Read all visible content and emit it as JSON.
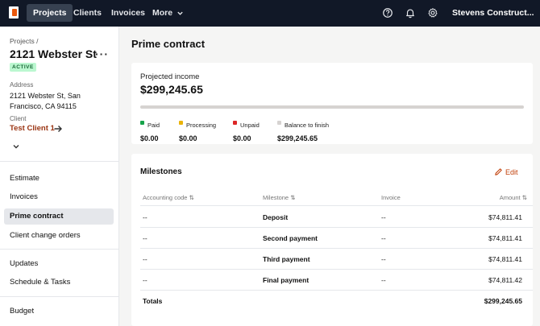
{
  "nav": {
    "tabs": [
      {
        "label": "Projects",
        "active": true
      },
      {
        "label": "Clients"
      },
      {
        "label": "Invoices"
      },
      {
        "label": "More"
      }
    ],
    "user": "Stevens Construct...",
    "icons": [
      "help-icon",
      "bell-icon",
      "gear-icon"
    ]
  },
  "project": {
    "breadcrumb": "Projects /",
    "title": "2121 Webster St",
    "status": "ACTIVE",
    "address_label": "Address",
    "address": "2121 Webster St, San Francisco, CA 94115",
    "client_label": "Client",
    "client": "Test Client 1"
  },
  "sidebar": {
    "items": [
      {
        "label": "Estimate"
      },
      {
        "label": "Invoices"
      },
      {
        "label": "Prime contract",
        "active": true
      },
      {
        "label": "Client change orders"
      },
      {
        "label": "Updates"
      },
      {
        "label": "Schedule & Tasks"
      },
      {
        "label": "Budget"
      }
    ]
  },
  "main": {
    "title": "Prime contract",
    "income": {
      "label": "Projected income",
      "value": "$299,245.65",
      "progress_fraction": 1.0,
      "stats": [
        {
          "label": "Paid",
          "value": "$0.00",
          "color": "#16a34a"
        },
        {
          "label": "Processing",
          "value": "$0.00",
          "color": "#eab308"
        },
        {
          "label": "Unpaid",
          "value": "$0.00",
          "color": "#dc2626"
        },
        {
          "label": "Balance to finish",
          "value": "$299,245.65",
          "color": "#d6d3d1"
        }
      ]
    },
    "milestones": {
      "title": "Milestones",
      "edit_label": "Edit",
      "columns": [
        "Accounting code",
        "Milestone",
        "Invoice",
        "Amount"
      ],
      "rows": [
        {
          "code": "--",
          "milestone": "Deposit",
          "invoice": "--",
          "amount": "$74,811.41"
        },
        {
          "code": "--",
          "milestone": "Second payment",
          "invoice": "--",
          "amount": "$74,811.41"
        },
        {
          "code": "--",
          "milestone": "Third payment",
          "invoice": "--",
          "amount": "$74,811.41"
        },
        {
          "code": "--",
          "milestone": "Final payment",
          "invoice": "--",
          "amount": "$74,811.42"
        }
      ],
      "totals_label": "Totals",
      "totals_value": "$299,245.65"
    }
  }
}
